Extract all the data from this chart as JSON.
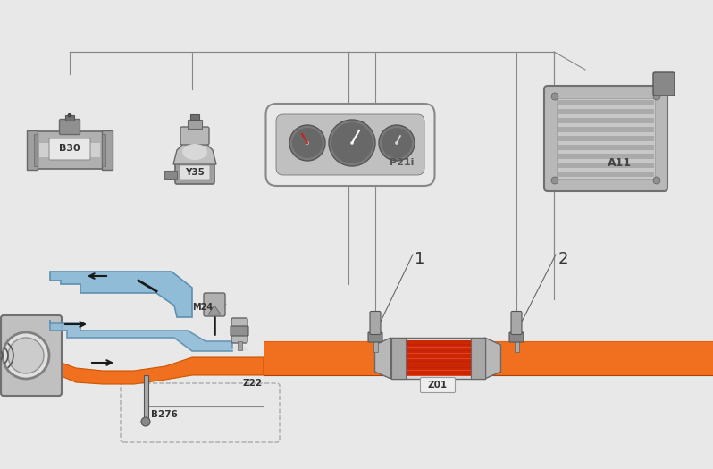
{
  "bg_color": "#e8e8e8",
  "pipe_color": "#f07020",
  "pipe_dark": "#cc5500",
  "engine_blue": "#90bcd8",
  "engine_blue_dark": "#6090b0",
  "silver": "#a8a8a8",
  "silver_light": "#d8d8d8",
  "silver_dark": "#686868",
  "silver_mid": "#b8b8b8",
  "cat_red": "#cc2800",
  "cat_red2": "#e83010",
  "black": "#1a1a1a",
  "white": "#ffffff",
  "wire_color": "#888888",
  "label_1": "1",
  "label_2": "2",
  "label_B30": "B30",
  "label_Y35": "Y35",
  "label_P21i": "P21i",
  "label_A11": "A11",
  "label_M24": "M24",
  "label_Z22": "Z22",
  "label_B276": "B276",
  "label_Z01": "Z01"
}
